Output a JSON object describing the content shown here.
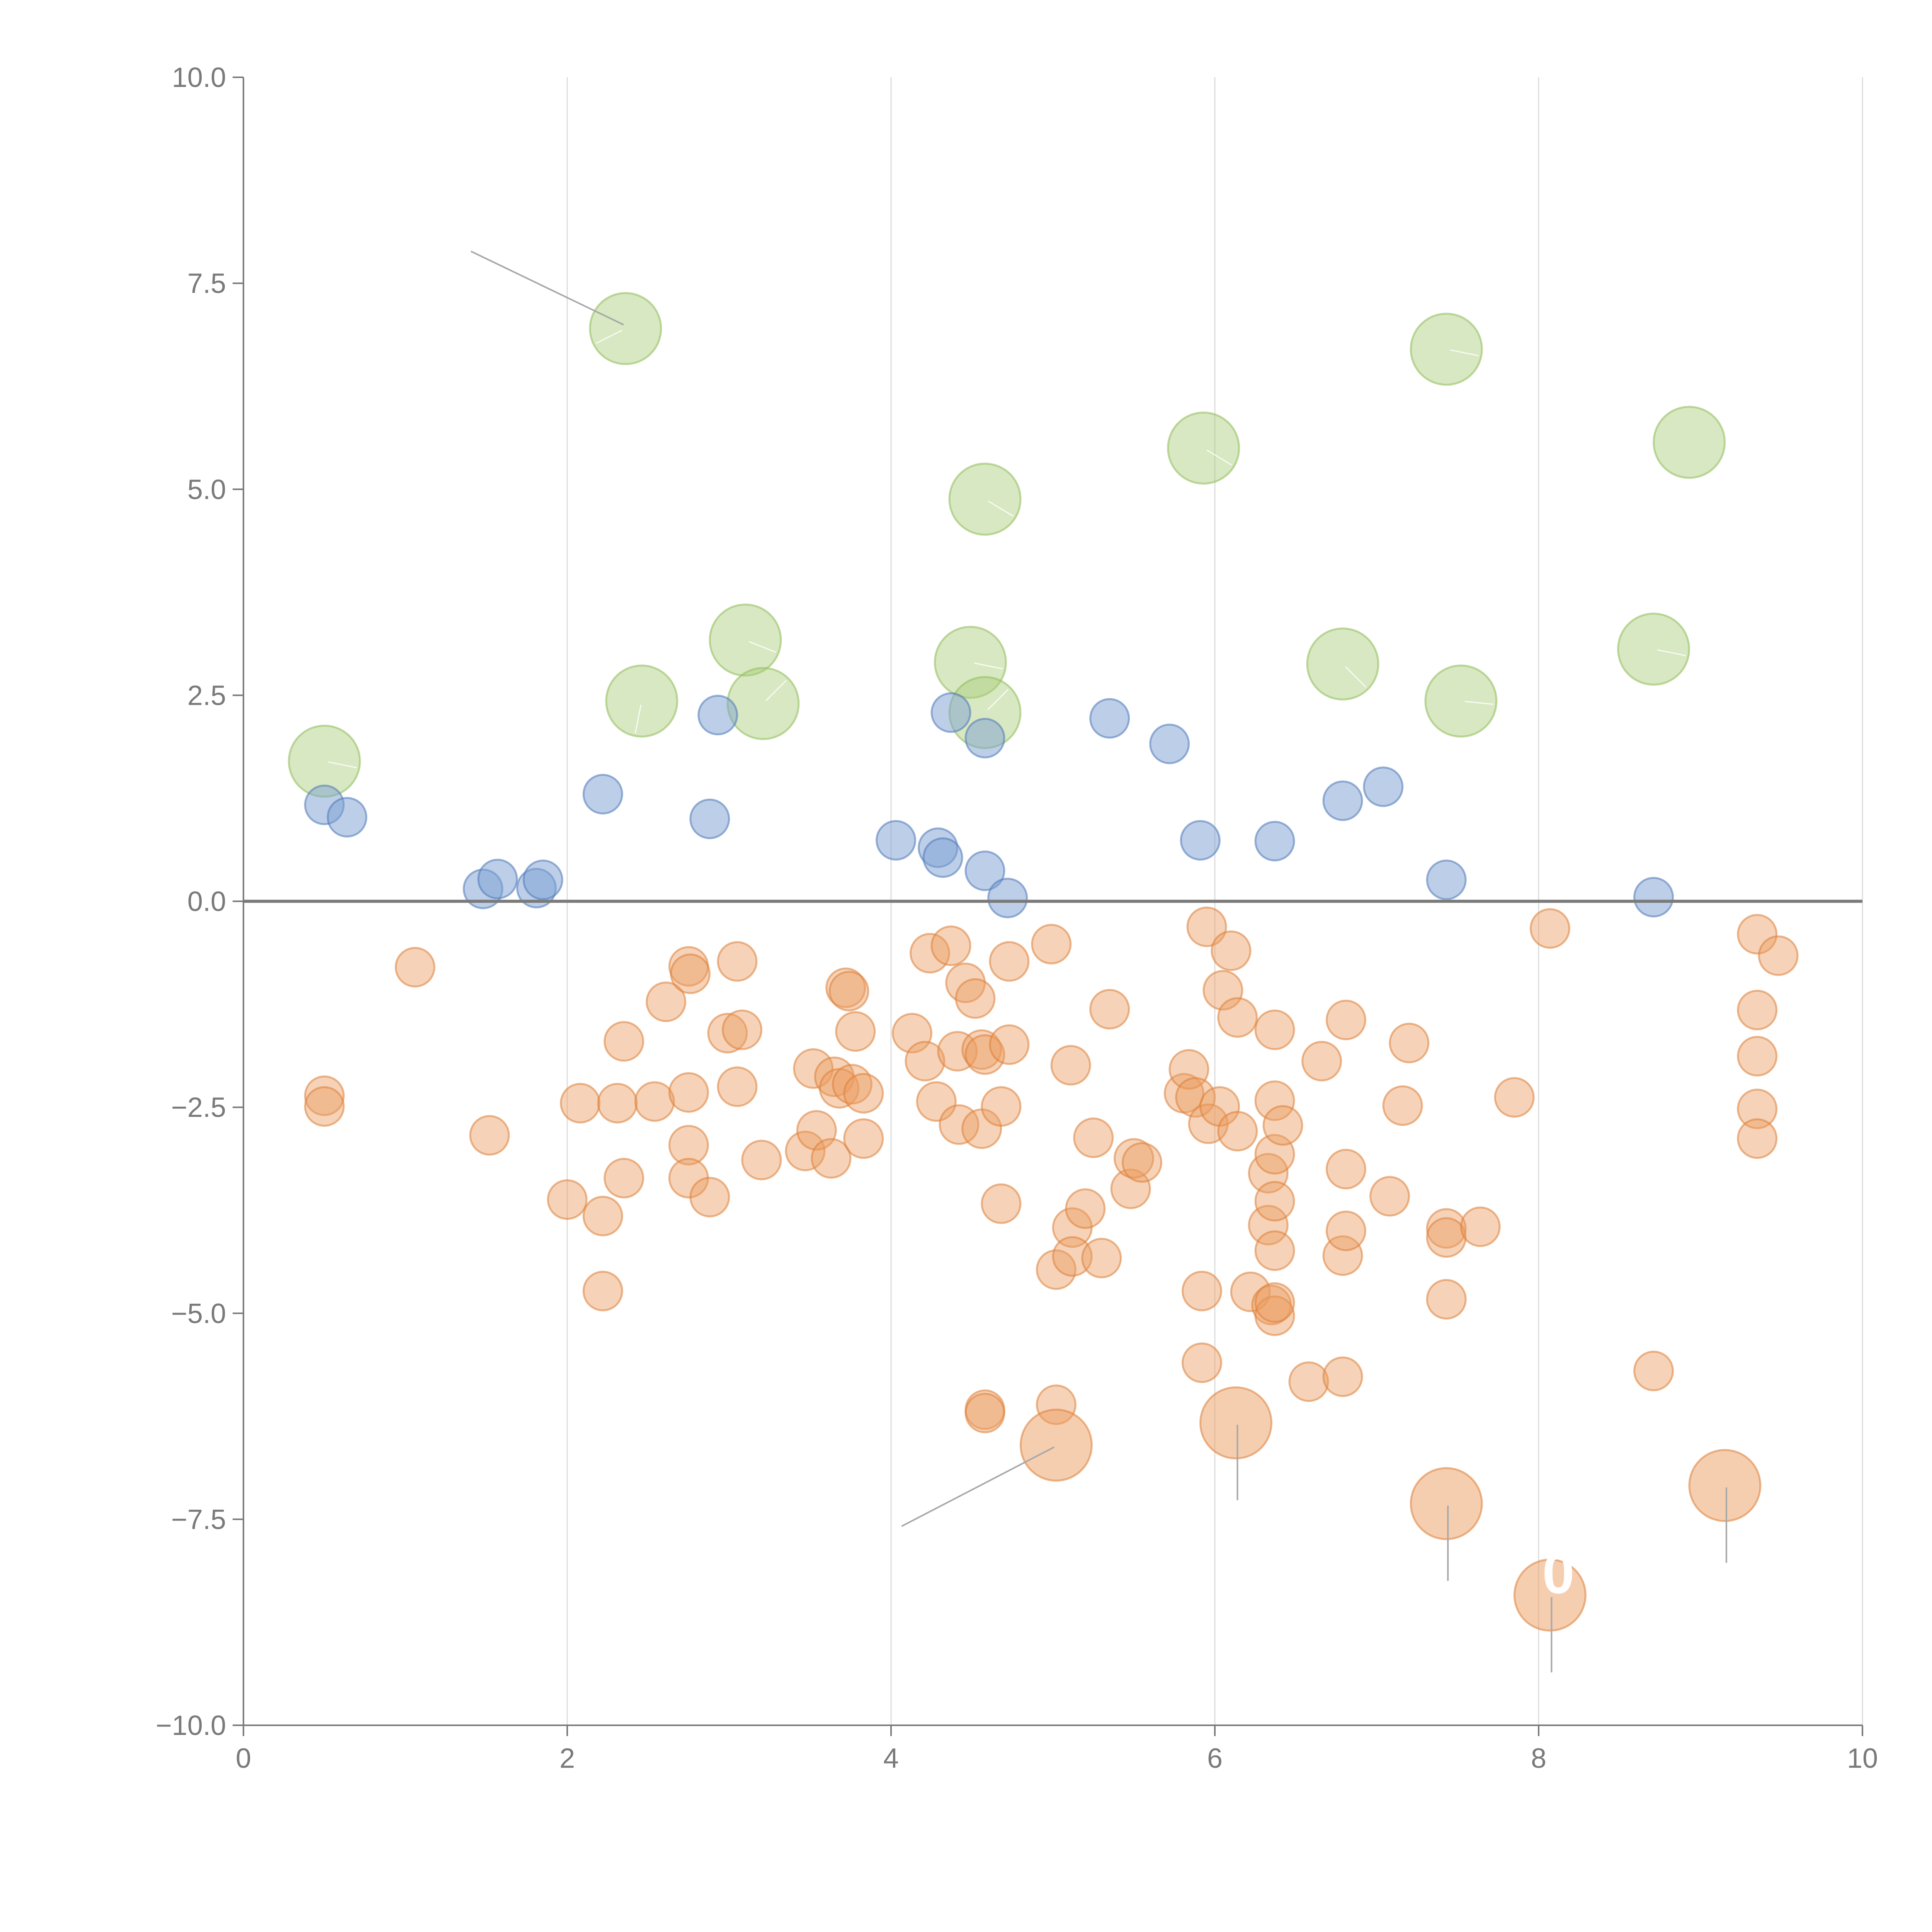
{
  "chart_data": {
    "type": "scatter",
    "title": "",
    "xlabel": "",
    "ylabel": "",
    "xlim": [
      0,
      10
    ],
    "ylim": [
      -10,
      10
    ],
    "x_ticks": [
      0,
      2,
      4,
      6,
      8,
      10
    ],
    "x_tick_labels": [
      "0",
      "2",
      "4",
      "6",
      "8",
      "10"
    ],
    "y_ticks": [
      10,
      7.5,
      5,
      2.5,
      0,
      -2.5,
      -5,
      -7.5,
      -10
    ],
    "y_tick_labels": [
      "10.0",
      "7.5",
      "5.0",
      "2.5",
      "0.0",
      "−2.5",
      "−5.0",
      "−7.5",
      "−10.0"
    ],
    "vertical_grid": true,
    "horizontal_grid": false,
    "zero_line": true,
    "annotation_text": "0",
    "colors": {
      "green": "#a9cc78",
      "green_stroke": "#8fbc5a",
      "blue": "#7b9fd2",
      "blue_stroke": "#4f79b8",
      "orange": "#ec9e62",
      "orange_stroke": "#dd7f39",
      "axis": "#7a7a7a",
      "grid": "#dcdcdc"
    },
    "series": [
      {
        "name": "green",
        "size": "large",
        "points": [
          [
            2.36,
            6.95
          ],
          [
            0.5,
            1.7
          ],
          [
            2.46,
            2.43
          ],
          [
            3.1,
            3.17
          ],
          [
            3.21,
            2.4
          ],
          [
            4.58,
            4.88
          ],
          [
            4.49,
            2.9
          ],
          [
            4.58,
            2.29
          ],
          [
            5.93,
            5.5
          ],
          [
            6.79,
            2.88
          ],
          [
            7.43,
            6.7
          ],
          [
            7.52,
            2.43
          ],
          [
            8.71,
            3.06
          ],
          [
            8.93,
            5.57
          ]
        ]
      },
      {
        "name": "blue",
        "size": "small",
        "points": [
          [
            0.5,
            1.17
          ],
          [
            0.64,
            1.02
          ],
          [
            1.48,
            0.15
          ],
          [
            1.57,
            0.27
          ],
          [
            1.81,
            0.16
          ],
          [
            1.85,
            0.26
          ],
          [
            2.22,
            1.3
          ],
          [
            2.88,
            1.0
          ],
          [
            2.93,
            2.26
          ],
          [
            4.03,
            0.74
          ],
          [
            4.29,
            0.65
          ],
          [
            4.32,
            0.53
          ],
          [
            4.37,
            2.29
          ],
          [
            4.58,
            1.98
          ],
          [
            4.58,
            0.37
          ],
          [
            4.72,
            0.04
          ],
          [
            5.35,
            2.22
          ],
          [
            5.72,
            1.91
          ],
          [
            5.91,
            0.74
          ],
          [
            6.37,
            0.73
          ],
          [
            6.79,
            1.22
          ],
          [
            7.04,
            1.39
          ],
          [
            7.43,
            0.26
          ],
          [
            8.71,
            0.05
          ]
        ]
      },
      {
        "name": "orange",
        "size": "small",
        "points": [
          [
            0.5,
            -2.36
          ],
          [
            0.5,
            -2.49
          ],
          [
            1.06,
            -0.8
          ],
          [
            1.52,
            -2.84
          ],
          [
            2.0,
            -3.62
          ],
          [
            2.08,
            -2.45
          ],
          [
            2.22,
            -3.82
          ],
          [
            2.22,
            -4.73
          ],
          [
            2.31,
            -2.45
          ],
          [
            2.35,
            -1.7
          ],
          [
            2.35,
            -3.36
          ],
          [
            2.54,
            -2.43
          ],
          [
            2.61,
            -1.22
          ],
          [
            2.75,
            -0.79
          ],
          [
            2.76,
            -0.88
          ],
          [
            2.75,
            -2.32
          ],
          [
            2.75,
            -2.96
          ],
          [
            2.75,
            -3.36
          ],
          [
            2.88,
            -3.59
          ],
          [
            2.99,
            -1.6
          ],
          [
            3.05,
            -0.73
          ],
          [
            3.05,
            -2.25
          ],
          [
            3.08,
            -1.56
          ],
          [
            3.2,
            -3.14
          ],
          [
            3.47,
            -3.03
          ],
          [
            3.52,
            -2.03
          ],
          [
            3.54,
            -2.78
          ],
          [
            3.63,
            -3.12
          ],
          [
            3.65,
            -2.13
          ],
          [
            3.68,
            -2.27
          ],
          [
            3.72,
            -1.05
          ],
          [
            3.74,
            -1.09
          ],
          [
            3.76,
            -2.22
          ],
          [
            3.78,
            -1.58
          ],
          [
            3.83,
            -2.33
          ],
          [
            3.83,
            -2.88
          ],
          [
            4.13,
            -1.6
          ],
          [
            4.21,
            -1.94
          ],
          [
            4.24,
            -0.63
          ],
          [
            4.28,
            -2.43
          ],
          [
            4.37,
            -0.54
          ],
          [
            4.41,
            -1.82
          ],
          [
            4.42,
            -2.71
          ],
          [
            4.46,
            -0.99
          ],
          [
            4.52,
            -1.18
          ],
          [
            4.56,
            -2.76
          ],
          [
            4.56,
            -1.8
          ],
          [
            4.58,
            -1.86
          ],
          [
            4.58,
            -6.17
          ],
          [
            4.58,
            -6.21
          ],
          [
            4.68,
            -2.49
          ],
          [
            4.68,
            -3.67
          ],
          [
            4.73,
            -1.74
          ],
          [
            4.73,
            -0.73
          ],
          [
            4.99,
            -0.52
          ],
          [
            5.02,
            -4.47
          ],
          [
            5.02,
            -6.11
          ],
          [
            5.11,
            -1.99
          ],
          [
            5.12,
            -3.96
          ],
          [
            5.12,
            -4.31
          ],
          [
            5.2,
            -3.73
          ],
          [
            5.25,
            -2.87
          ],
          [
            5.3,
            -4.33
          ],
          [
            5.35,
            -1.31
          ],
          [
            5.48,
            -3.49
          ],
          [
            5.5,
            -3.12
          ],
          [
            5.55,
            -3.17
          ],
          [
            5.81,
            -2.33
          ],
          [
            5.84,
            -2.04
          ],
          [
            5.88,
            -2.38
          ],
          [
            5.92,
            -4.73
          ],
          [
            5.92,
            -5.6
          ],
          [
            5.95,
            -0.31
          ],
          [
            5.96,
            -2.7
          ],
          [
            6.03,
            -2.49
          ],
          [
            6.05,
            -1.08
          ],
          [
            6.1,
            -0.6
          ],
          [
            6.14,
            -1.41
          ],
          [
            6.14,
            -2.79
          ],
          [
            6.22,
            -4.74
          ],
          [
            6.33,
            -3.3
          ],
          [
            6.33,
            -3.93
          ],
          [
            6.35,
            -4.9
          ],
          [
            6.37,
            -5.03
          ],
          [
            6.37,
            -4.87
          ],
          [
            6.37,
            -2.42
          ],
          [
            6.37,
            -1.56
          ],
          [
            6.37,
            -3.07
          ],
          [
            6.37,
            -3.64
          ],
          [
            6.37,
            -4.24
          ],
          [
            6.42,
            -2.72
          ],
          [
            6.58,
            -5.83
          ],
          [
            6.66,
            -1.94
          ],
          [
            6.79,
            -5.77
          ],
          [
            6.79,
            -4.3
          ],
          [
            6.81,
            -4.0
          ],
          [
            6.81,
            -3.25
          ],
          [
            6.81,
            -1.44
          ],
          [
            7.08,
            -3.58
          ],
          [
            7.16,
            -2.48
          ],
          [
            7.2,
            -1.72
          ],
          [
            7.43,
            -3.97
          ],
          [
            7.43,
            -4.08
          ],
          [
            7.43,
            -4.83
          ],
          [
            7.64,
            -3.95
          ],
          [
            7.85,
            -2.38
          ],
          [
            8.07,
            -0.33
          ],
          [
            8.71,
            -5.7
          ],
          [
            9.35,
            -0.4
          ],
          [
            9.35,
            -1.32
          ],
          [
            9.35,
            -1.88
          ],
          [
            9.35,
            -2.52
          ],
          [
            9.35,
            -2.88
          ],
          [
            9.48,
            -0.66
          ]
        ]
      },
      {
        "name": "orange-large",
        "size": "large",
        "points": [
          [
            5.02,
            -6.6
          ],
          [
            6.13,
            -6.33
          ],
          [
            7.43,
            -7.31
          ],
          [
            8.07,
            -8.42
          ],
          [
            9.15,
            -7.09
          ]
        ]
      }
    ]
  }
}
